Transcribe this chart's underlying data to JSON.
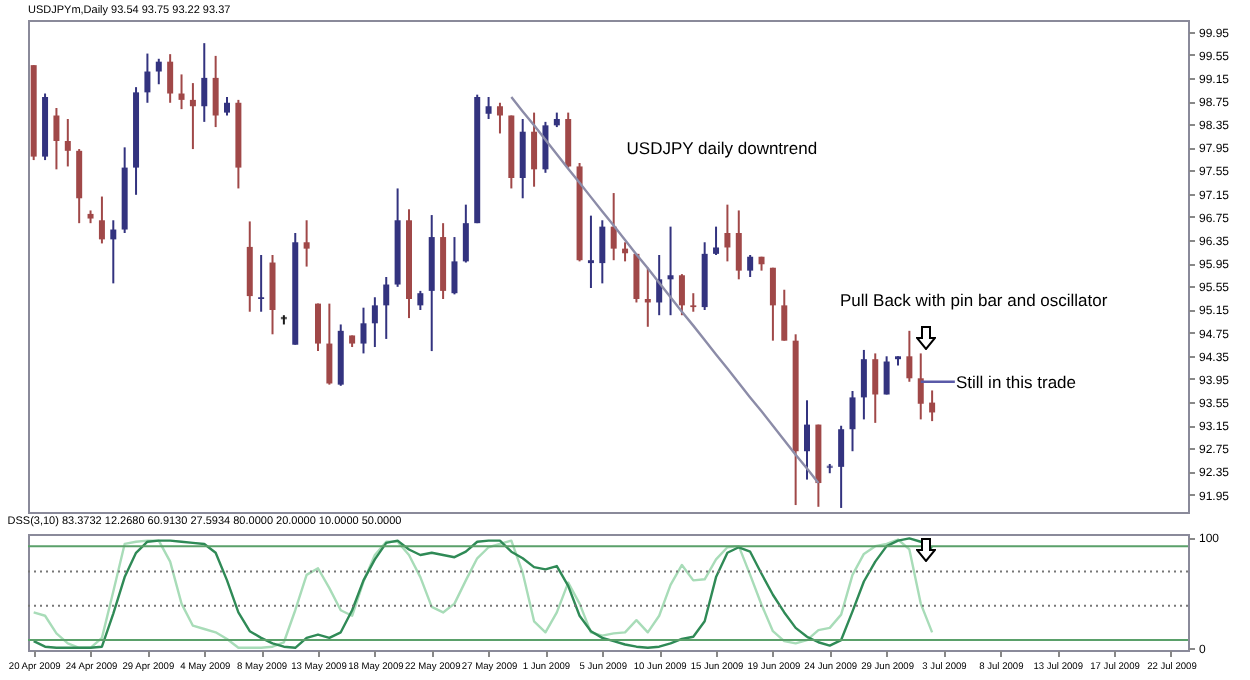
{
  "chart_data": [
    {
      "type": "candlestick",
      "title": "USDJPYm,Daily 93.54 93.75 93.22 93.37",
      "tick_labels": "y",
      "categories": [
        null,
        null,
        null,
        null,
        null,
        null,
        null,
        null,
        null,
        null,
        null,
        null,
        null,
        null,
        null,
        null,
        null,
        null,
        null,
        null,
        null,
        null,
        null,
        null,
        null,
        null,
        null,
        null,
        null,
        null,
        null,
        null,
        null,
        null,
        null,
        null,
        null,
        null,
        null,
        null,
        null,
        null,
        null,
        null,
        null,
        null,
        null,
        null,
        null,
        null,
        null,
        null,
        null,
        null,
        null,
        null,
        null,
        null,
        null,
        null,
        null,
        null,
        null,
        null,
        null,
        null,
        null,
        null,
        null,
        null,
        null,
        null,
        null,
        null,
        null,
        null,
        null,
        null,
        null,
        null,
        null,
        null,
        null,
        null,
        null,
        null,
        null,
        null,
        null,
        null,
        null,
        null,
        null,
        null,
        null,
        null,
        null,
        null,
        null,
        null,
        null,
        null
      ],
      "ohlc": [
        [
          99.37,
          99.37,
          97.73,
          97.79
        ],
        [
          97.79,
          98.88,
          97.73,
          98.82
        ],
        [
          98.5,
          98.63,
          97.57,
          98.06
        ],
        [
          98.06,
          98.44,
          97.62,
          97.89
        ],
        [
          97.89,
          97.92,
          96.64,
          97.07
        ],
        [
          96.8,
          96.86,
          96.64,
          96.72
        ],
        [
          96.69,
          97.1,
          96.29,
          96.36
        ],
        [
          96.36,
          96.69,
          95.6,
          96.53
        ],
        [
          96.53,
          97.95,
          96.47,
          97.6
        ],
        [
          97.6,
          98.99,
          97.13,
          98.9
        ],
        [
          98.9,
          99.57,
          98.72,
          99.26
        ],
        [
          99.26,
          99.48,
          99.04,
          99.43
        ],
        [
          99.43,
          99.56,
          98.72,
          98.88
        ],
        [
          98.88,
          99.21,
          98.61,
          98.77
        ],
        [
          98.77,
          99.06,
          97.92,
          98.66
        ],
        [
          98.66,
          99.75,
          98.39,
          99.15
        ],
        [
          99.15,
          99.53,
          98.3,
          98.5
        ],
        [
          98.55,
          98.82,
          98.5,
          98.72
        ],
        [
          98.72,
          98.77,
          97.24,
          97.6
        ],
        [
          96.23,
          96.67,
          95.11,
          95.38
        ],
        [
          95.33,
          96.09,
          95.11,
          95.36
        ],
        [
          95.96,
          96.09,
          94.72,
          95.14
        ],
        [
          95.0,
          95.05,
          94.89,
          95.0
        ],
        [
          94.54,
          96.47,
          94.54,
          96.31
        ],
        [
          96.31,
          96.69,
          95.89,
          96.2
        ],
        [
          95.25,
          95.25,
          94.43,
          94.56
        ],
        [
          94.56,
          95.25,
          93.85,
          93.87
        ],
        [
          93.85,
          94.89,
          93.83,
          94.78
        ],
        [
          94.7,
          94.7,
          94.5,
          94.56
        ],
        [
          94.56,
          95.18,
          94.39,
          94.91
        ],
        [
          94.91,
          95.36,
          94.5,
          95.22
        ],
        [
          95.22,
          95.71,
          94.64,
          95.58
        ],
        [
          95.58,
          97.24,
          95.54,
          96.69
        ],
        [
          96.69,
          96.88,
          95.0,
          95.33
        ],
        [
          95.22,
          95.47,
          95.14,
          95.43
        ],
        [
          95.47,
          96.78,
          94.43,
          96.4
        ],
        [
          96.4,
          96.64,
          95.33,
          95.47
        ],
        [
          95.43,
          96.4,
          95.41,
          95.98
        ],
        [
          95.98,
          96.96,
          95.96,
          96.64
        ],
        [
          96.64,
          98.86,
          96.64,
          98.82
        ],
        [
          98.53,
          98.82,
          98.44,
          98.66
        ],
        [
          98.66,
          98.72,
          98.19,
          98.5
        ],
        [
          98.5,
          98.5,
          97.24,
          97.42
        ],
        [
          97.42,
          98.44,
          97.07,
          98.22
        ],
        [
          98.22,
          98.55,
          97.27,
          97.57
        ],
        [
          97.57,
          98.39,
          97.51,
          98.33
        ],
        [
          98.33,
          98.55,
          98.3,
          98.44
        ],
        [
          98.44,
          98.55,
          97.6,
          97.62
        ],
        [
          97.62,
          97.68,
          95.98,
          96.0
        ],
        [
          95.95,
          96.77,
          95.52,
          96.0
        ],
        [
          95.95,
          96.69,
          95.6,
          96.58
        ],
        [
          96.58,
          97.16,
          96.0,
          96.2
        ],
        [
          96.2,
          96.31,
          95.98,
          96.12
        ],
        [
          96.11,
          96.11,
          95.27,
          95.33
        ],
        [
          95.33,
          95.87,
          94.85,
          95.27
        ],
        [
          95.27,
          96.09,
          95.05,
          95.67
        ],
        [
          95.67,
          96.58,
          95.05,
          95.74
        ],
        [
          95.74,
          95.76,
          95.05,
          95.22
        ],
        [
          95.22,
          95.43,
          95.11,
          95.19
        ],
        [
          95.19,
          96.31,
          95.14,
          96.11
        ],
        [
          96.11,
          96.58,
          96.09,
          96.22
        ],
        [
          96.47,
          96.96,
          95.98,
          96.22
        ],
        [
          96.47,
          96.86,
          95.67,
          95.82
        ],
        [
          95.82,
          96.09,
          95.71,
          96.06
        ],
        [
          96.06,
          96.06,
          95.82,
          95.93
        ],
        [
          95.87,
          95.87,
          94.61,
          95.22
        ],
        [
          95.22,
          95.49,
          94.61,
          94.61
        ],
        [
          94.61,
          94.72,
          91.77,
          92.7
        ],
        [
          92.7,
          93.58,
          92.21,
          93.16
        ],
        [
          93.16,
          93.16,
          91.74,
          92.15
        ],
        [
          92.43,
          92.48,
          92.32,
          92.43
        ],
        [
          92.43,
          93.14,
          91.72,
          93.08
        ],
        [
          93.08,
          93.74,
          92.7,
          93.63
        ],
        [
          93.63,
          94.45,
          93.25,
          94.29
        ],
        [
          94.29,
          94.39,
          93.19,
          93.68
        ],
        [
          93.68,
          94.34,
          93.68,
          94.25
        ],
        [
          94.29,
          94.34,
          94.18,
          94.34
        ],
        [
          94.34,
          94.78,
          93.9,
          93.96
        ],
        [
          93.96,
          94.39,
          93.25,
          93.52
        ],
        [
          93.54,
          93.75,
          93.22,
          93.37
        ],
        null,
        null,
        null,
        null,
        null,
        null,
        null,
        null,
        null,
        null,
        null,
        null,
        null,
        null,
        null,
        null,
        null,
        null,
        null,
        null,
        null,
        null
      ],
      "colors": [
        "#a04848",
        "#33337f",
        "#a04848",
        "#a04848",
        "#a04848",
        "#a04848",
        "#a04848",
        "#33337f",
        "#33337f",
        "#33337f",
        "#33337f",
        "#33337f",
        "#a04848",
        "#a04848",
        "#a04848",
        "#33337f",
        "#a04848",
        "#33337f",
        "#a04848",
        "#a04848",
        "#33337f",
        "#a04848",
        "#1a1a1a",
        "#33337f",
        "#a04848",
        "#a04848",
        "#a04848",
        "#33337f",
        "#a04848",
        "#33337f",
        "#33337f",
        "#33337f",
        "#33337f",
        "#a04848",
        "#33337f",
        "#33337f",
        "#a04848",
        "#33337f",
        "#33337f",
        "#33337f",
        "#33337f",
        "#a04848",
        "#a04848",
        "#33337f",
        "#a04848",
        "#33337f",
        "#33337f",
        "#a04848",
        "#a04848",
        "#33337f",
        "#33337f",
        "#a04848",
        "#a04848",
        "#a04848",
        "#a04848",
        "#33337f",
        "#33337f",
        "#a04848",
        "#a04848",
        "#33337f",
        "#33337f",
        "#a04848",
        "#a04848",
        "#33337f",
        "#a04848",
        "#a04848",
        "#a04848",
        "#a04848",
        "#33337f",
        "#a04848",
        "#33337f",
        "#33337f",
        "#33337f",
        "#33337f",
        "#a04848",
        "#33337f",
        "#33337f",
        "#a04848",
        "#a04848",
        "#a04848",
        null,
        null,
        null,
        null,
        null,
        null,
        null,
        null,
        null,
        null,
        null,
        null,
        null,
        null,
        null,
        null,
        null,
        null,
        null,
        null,
        null,
        null
      ],
      "series": [
        {
          "type": "line",
          "color": "#8c8ca8",
          "values": [
            null,
            null,
            null,
            null,
            null,
            null,
            null,
            null,
            null,
            null,
            null,
            null,
            null,
            null,
            null,
            null,
            null,
            null,
            null,
            null,
            null,
            null,
            null,
            null,
            null,
            null,
            null,
            null,
            null,
            null,
            null,
            null,
            null,
            null,
            null,
            null,
            null,
            null,
            null,
            null,
            null,
            null,
            98.82,
            98.57,
            98.33,
            98.08,
            97.83,
            97.58,
            97.34,
            97.09,
            96.84,
            96.6,
            96.35,
            96.1,
            95.86,
            95.61,
            95.36,
            95.11,
            94.87,
            94.62,
            94.37,
            94.13,
            93.88,
            93.63,
            93.39,
            93.14,
            92.89,
            92.64,
            92.4,
            92.15,
            null,
            null,
            null,
            null,
            null,
            null,
            null,
            null,
            null,
            null,
            null,
            null,
            null,
            null,
            null,
            null,
            null,
            null,
            null,
            null,
            null,
            null,
            null,
            null,
            null,
            null,
            null,
            null,
            null,
            null,
            null,
            null
          ]
        },
        {
          "type": "line",
          "color": "#5a5aa8",
          "values": [
            null,
            null,
            null,
            null,
            null,
            null,
            null,
            null,
            null,
            null,
            null,
            null,
            null,
            null,
            null,
            null,
            null,
            null,
            null,
            null,
            null,
            null,
            null,
            null,
            null,
            null,
            null,
            null,
            null,
            null,
            null,
            null,
            null,
            null,
            null,
            null,
            null,
            null,
            null,
            null,
            null,
            null,
            null,
            null,
            null,
            null,
            null,
            null,
            null,
            null,
            null,
            null,
            null,
            null,
            null,
            null,
            null,
            null,
            null,
            null,
            null,
            null,
            null,
            null,
            null,
            null,
            null,
            null,
            null,
            null,
            null,
            null,
            null,
            null,
            null,
            null,
            null,
            null,
            93.9,
            93.9,
            93.9,
            93.9,
            null,
            null,
            null,
            null,
            null,
            null,
            null,
            null,
            null,
            null,
            null,
            null,
            null,
            null,
            null,
            null,
            null,
            null,
            null,
            null
          ]
        }
      ],
      "annotations": [
        "USDJPY daily downtrend",
        "Pull Back with pin bar and oscillator",
        "Still in this trade"
      ],
      "ylim": [
        91.65,
        100.15
      ],
      "yticks": [
        91.95,
        92.35,
        92.75,
        93.15,
        93.55,
        93.95,
        94.35,
        94.75,
        95.15,
        95.55,
        95.95,
        96.35,
        96.75,
        97.15,
        97.55,
        97.95,
        98.35,
        98.75,
        99.15,
        99.55,
        99.95
      ]
    },
    {
      "type": "line",
      "title": "DSS(3,10) 83.3732 12.2680 60.9130 27.5934 80.0000 20.0000 10.0000 50.0000",
      "categories": [
        "20 Apr 2009",
        null,
        null,
        null,
        null,
        "24 Apr 2009",
        null,
        null,
        null,
        null,
        "29 Apr 2009",
        null,
        null,
        null,
        null,
        "4 May 2009",
        null,
        null,
        null,
        null,
        "8 May 2009",
        null,
        null,
        null,
        null,
        "13 May 2009",
        null,
        null,
        null,
        null,
        "18 May 2009",
        null,
        null,
        null,
        null,
        "22 May 2009",
        null,
        null,
        null,
        null,
        "27 May 2009",
        null,
        null,
        null,
        null,
        "1 Jun 2009",
        null,
        null,
        null,
        null,
        "5 Jun 2009",
        null,
        null,
        null,
        null,
        "10 Jun 2009",
        null,
        null,
        null,
        null,
        "15 Jun 2009",
        null,
        null,
        null,
        null,
        "19 Jun 2009",
        null,
        null,
        null,
        null,
        "24 Jun 2009",
        null,
        null,
        null,
        null,
        "29 Jun 2009",
        null,
        null,
        null,
        null,
        "3 Jul 2009",
        null,
        null,
        null,
        null,
        "8 Jul 2009",
        null,
        null,
        null,
        null,
        "13 Jul 2009",
        null,
        null,
        null,
        null,
        "17 Jul 2009",
        null,
        null,
        null,
        null,
        "22 Jul 2009",
        null
      ],
      "series": [
        {
          "color": "#a8dcb8",
          "values": [
            32,
            29,
            13,
            4,
            0,
            0,
            9,
            51,
            94,
            96,
            97,
            97,
            78,
            40,
            20,
            17,
            14,
            8,
            0,
            0,
            0,
            1,
            5,
            34,
            66,
            72,
            54,
            34,
            29,
            60,
            84,
            96,
            96,
            84,
            64,
            37,
            32,
            40,
            61,
            81,
            91,
            94,
            97,
            68,
            24,
            14,
            32,
            59,
            40,
            14,
            11,
            13,
            14,
            25,
            14,
            29,
            57,
            75,
            61,
            62,
            80,
            91,
            92,
            66,
            39,
            15,
            6,
            4,
            7,
            16,
            18,
            30,
            66,
            85,
            92,
            94,
            98,
            89,
            40,
            14,
            null,
            null,
            null,
            null,
            null,
            null,
            null,
            null,
            null,
            null,
            null,
            null,
            null,
            null,
            null,
            null,
            null,
            null,
            null,
            null,
            null,
            null
          ]
        },
        {
          "color": "#2f8a56",
          "values": [
            6,
            1,
            0,
            0,
            0,
            0,
            1,
            31,
            64,
            86,
            96,
            97,
            97,
            96,
            95,
            94,
            86,
            61,
            32,
            15,
            9,
            4,
            1,
            0,
            9,
            12,
            9,
            14,
            34,
            61,
            80,
            95,
            97,
            89,
            84,
            86,
            84,
            82,
            87,
            96,
            97,
            97,
            87,
            81,
            73,
            71,
            74,
            56,
            29,
            15,
            9,
            6,
            3,
            1,
            0,
            1,
            4,
            8,
            10,
            24,
            64,
            86,
            91,
            87,
            67,
            48,
            32,
            18,
            10,
            5,
            2,
            7,
            33,
            60,
            78,
            92,
            97,
            99,
            96,
            90,
            null,
            null,
            null,
            null,
            null,
            null,
            null,
            null,
            null,
            null,
            null,
            null,
            null,
            null,
            null,
            null,
            null,
            null,
            null,
            null,
            null,
            null
          ]
        }
      ],
      "ref_lines": [
        {
          "axis": "y",
          "value": 92,
          "color": "#5aa06a"
        },
        {
          "axis": "y",
          "value": 69,
          "color": "#777777",
          "line_style": "dotted"
        },
        {
          "axis": "y",
          "value": 38,
          "color": "#777777",
          "line_style": "dotted"
        },
        {
          "axis": "y",
          "value": 7,
          "color": "#5aa06a"
        }
      ],
      "ylim": [
        -2,
        103
      ],
      "yticks": [
        0,
        100
      ]
    }
  ]
}
